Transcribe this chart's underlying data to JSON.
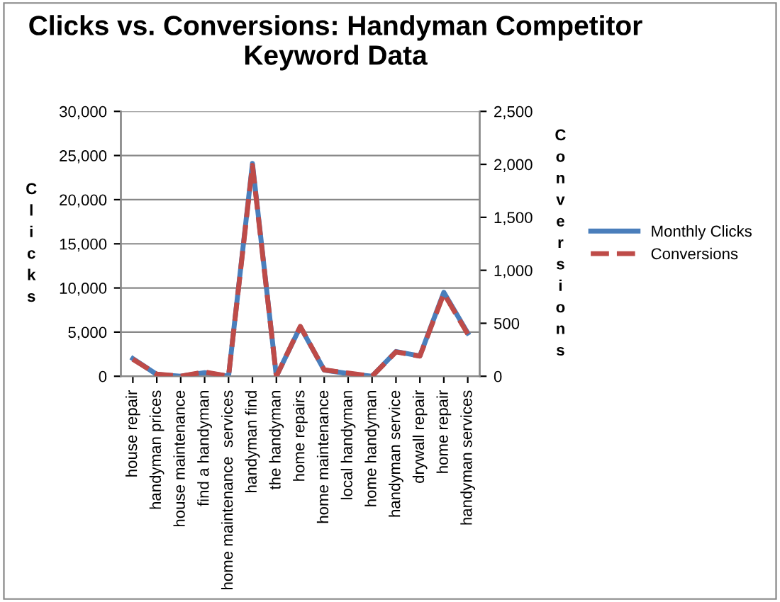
{
  "chart_data": {
    "type": "line",
    "title": "Clicks vs. Conversions: Handyman Competitor Keyword Data",
    "ylabel": "Clicks",
    "y2label": "Conversions",
    "categories": [
      "house repair",
      "handyman prices",
      "house maintenance",
      "find a handyman",
      "home maintenance  services",
      "handyman find",
      "the handyman",
      "home repairs",
      "home maintenance",
      "local handyman",
      "home handyman",
      "handyman service",
      "drywall repair",
      "home repair",
      "handyman services"
    ],
    "series": [
      {
        "name": "Monthly Clicks",
        "color": "#4a7ebb",
        "line_style": "solid",
        "values": [
          2000,
          200,
          0,
          400,
          0,
          24100,
          0,
          5600,
          700,
          300,
          0,
          2800,
          2300,
          9500,
          4900
        ]
      },
      {
        "name": "Conversions",
        "color": "#be4b48",
        "line_style": "dashed",
        "axis": "y2",
        "values": [
          160,
          20,
          0,
          40,
          0,
          1990,
          0,
          470,
          60,
          30,
          0,
          230,
          190,
          780,
          400
        ]
      }
    ],
    "ylim": [
      0,
      30000
    ],
    "yticks": [
      {
        "value": 0,
        "label": "0"
      },
      {
        "value": 5000,
        "label": "5,000"
      },
      {
        "value": 10000,
        "label": "10,000"
      },
      {
        "value": 15000,
        "label": "15,000"
      },
      {
        "value": 20000,
        "label": "20,000"
      },
      {
        "value": 25000,
        "label": "25,000"
      },
      {
        "value": 30000,
        "label": "30,000"
      }
    ],
    "y2lim": [
      0,
      2500
    ],
    "y2ticks": [
      {
        "value": 0,
        "label": "0"
      },
      {
        "value": 500,
        "label": "500"
      },
      {
        "value": 1000,
        "label": "1,000"
      },
      {
        "value": 1500,
        "label": "1,500"
      },
      {
        "value": 2000,
        "label": "2,000"
      },
      {
        "value": 2500,
        "label": "2,500"
      }
    ],
    "grid": "y",
    "legend": "right",
    "marker": "none"
  }
}
